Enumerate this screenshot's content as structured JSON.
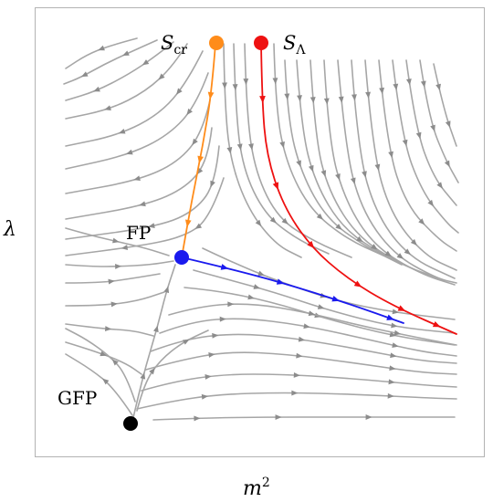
{
  "axes": {
    "x_label": "m",
    "x_label_exponent": "2",
    "y_label": "λ"
  },
  "labels": {
    "scr_main": "S",
    "scr_sub": "cr",
    "slambda_main": "S",
    "slambda_sub": "Λ",
    "fp": "FP",
    "gfp": "GFP"
  },
  "points": {
    "s_cr": {
      "name": "S_cr",
      "color": "#ff8c1a"
    },
    "s_lambda": {
      "name": "S_Λ",
      "color": "#ee1111"
    },
    "fp": {
      "name": "FP",
      "color": "#1a1aee"
    },
    "gfp": {
      "name": "GFP",
      "color": "#000000"
    }
  },
  "colors": {
    "streamline": "#a6a6a6",
    "frame": "#b3b3b3",
    "orange_trajectory": "#ff8c1a",
    "red_trajectory": "#ee1111",
    "blue_trajectory": "#1a1aee"
  }
}
